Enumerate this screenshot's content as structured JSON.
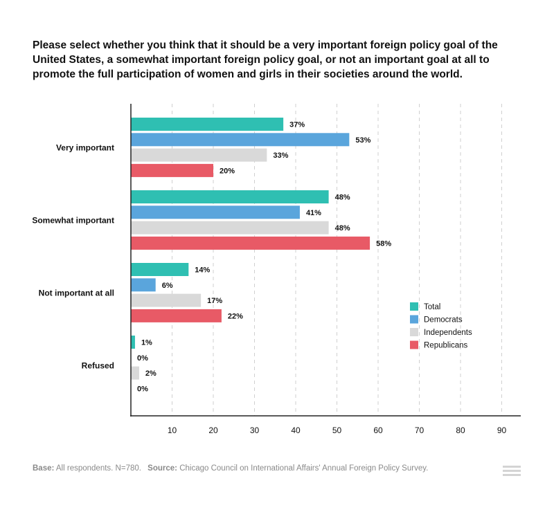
{
  "chart_data": {
    "type": "bar",
    "orientation": "horizontal",
    "title": "Please select whether you think that it should be a very important foreign policy goal of the United States, a somewhat important foreign policy goal, or not an important goal at all to promote the full participation of women and girls in their societies around the world.",
    "categories": [
      "Very important",
      "Somewhat important",
      "Not important at all",
      "Refused"
    ],
    "series": [
      {
        "name": "Total",
        "color": "#2fbfb2",
        "values": [
          37,
          48,
          14,
          1
        ]
      },
      {
        "name": "Democrats",
        "color": "#5aa5dc",
        "values": [
          53,
          41,
          6,
          0
        ]
      },
      {
        "name": "Independents",
        "color": "#d9d9d9",
        "values": [
          33,
          48,
          17,
          2
        ]
      },
      {
        "name": "Republicans",
        "color": "#e85a66",
        "values": [
          20,
          58,
          22,
          0
        ]
      }
    ],
    "xlim": [
      0,
      95
    ],
    "xticks": [
      10,
      20,
      30,
      40,
      50,
      60,
      70,
      80,
      90
    ],
    "value_suffix": "%",
    "grid": "dashed vertical",
    "legend_position": "right"
  },
  "footer": {
    "base_label": "Base:",
    "base_text": "All respondents. N=780.",
    "source_label": "Source:",
    "source_text": "Chicago Council on International Affairs' Annual Foreign Policy Survey."
  },
  "icons": {
    "menu": "menu-icon"
  }
}
